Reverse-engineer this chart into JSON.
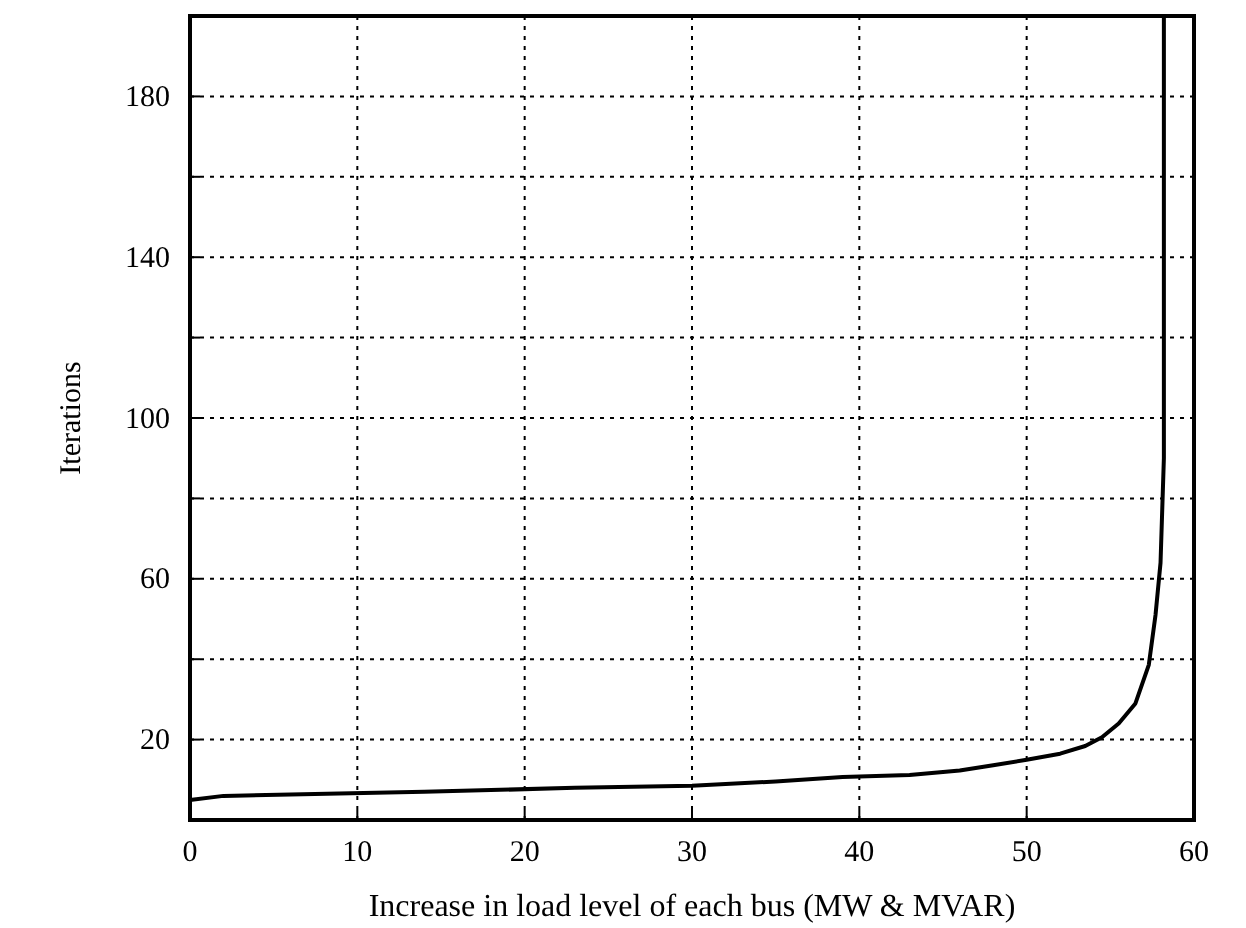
{
  "chart_data": {
    "type": "line",
    "xlabel": "Increase in load level of each bus (MW & MVAR)",
    "ylabel": "Iterations",
    "xlim": [
      0,
      60
    ],
    "ylim": [
      0,
      200
    ],
    "xticks": [
      0,
      10,
      20,
      30,
      40,
      50,
      60
    ],
    "yticks": [
      20,
      {
        "value": 40,
        "label": null
      },
      60,
      {
        "value": 80,
        "label": null
      },
      100,
      {
        "value": 120,
        "label": null
      },
      140,
      {
        "value": 160,
        "label": null
      },
      180
    ],
    "grid": true,
    "line_style": "solid",
    "marker": "none",
    "series": [
      {
        "color": "#000000",
        "x": [
          0,
          2,
          14,
          23,
          30,
          35,
          39,
          43,
          46,
          48,
          50,
          52,
          53.5,
          54.5,
          55.5,
          56.5,
          57.3,
          57.7,
          58.0,
          58.2,
          58.2
        ],
        "values": [
          5,
          6,
          7,
          8,
          8.5,
          9.6,
          10.7,
          11.2,
          12.3,
          13.6,
          15,
          16.5,
          18.4,
          20.6,
          24,
          29,
          38.6,
          51,
          64,
          90,
          200
        ]
      }
    ]
  }
}
